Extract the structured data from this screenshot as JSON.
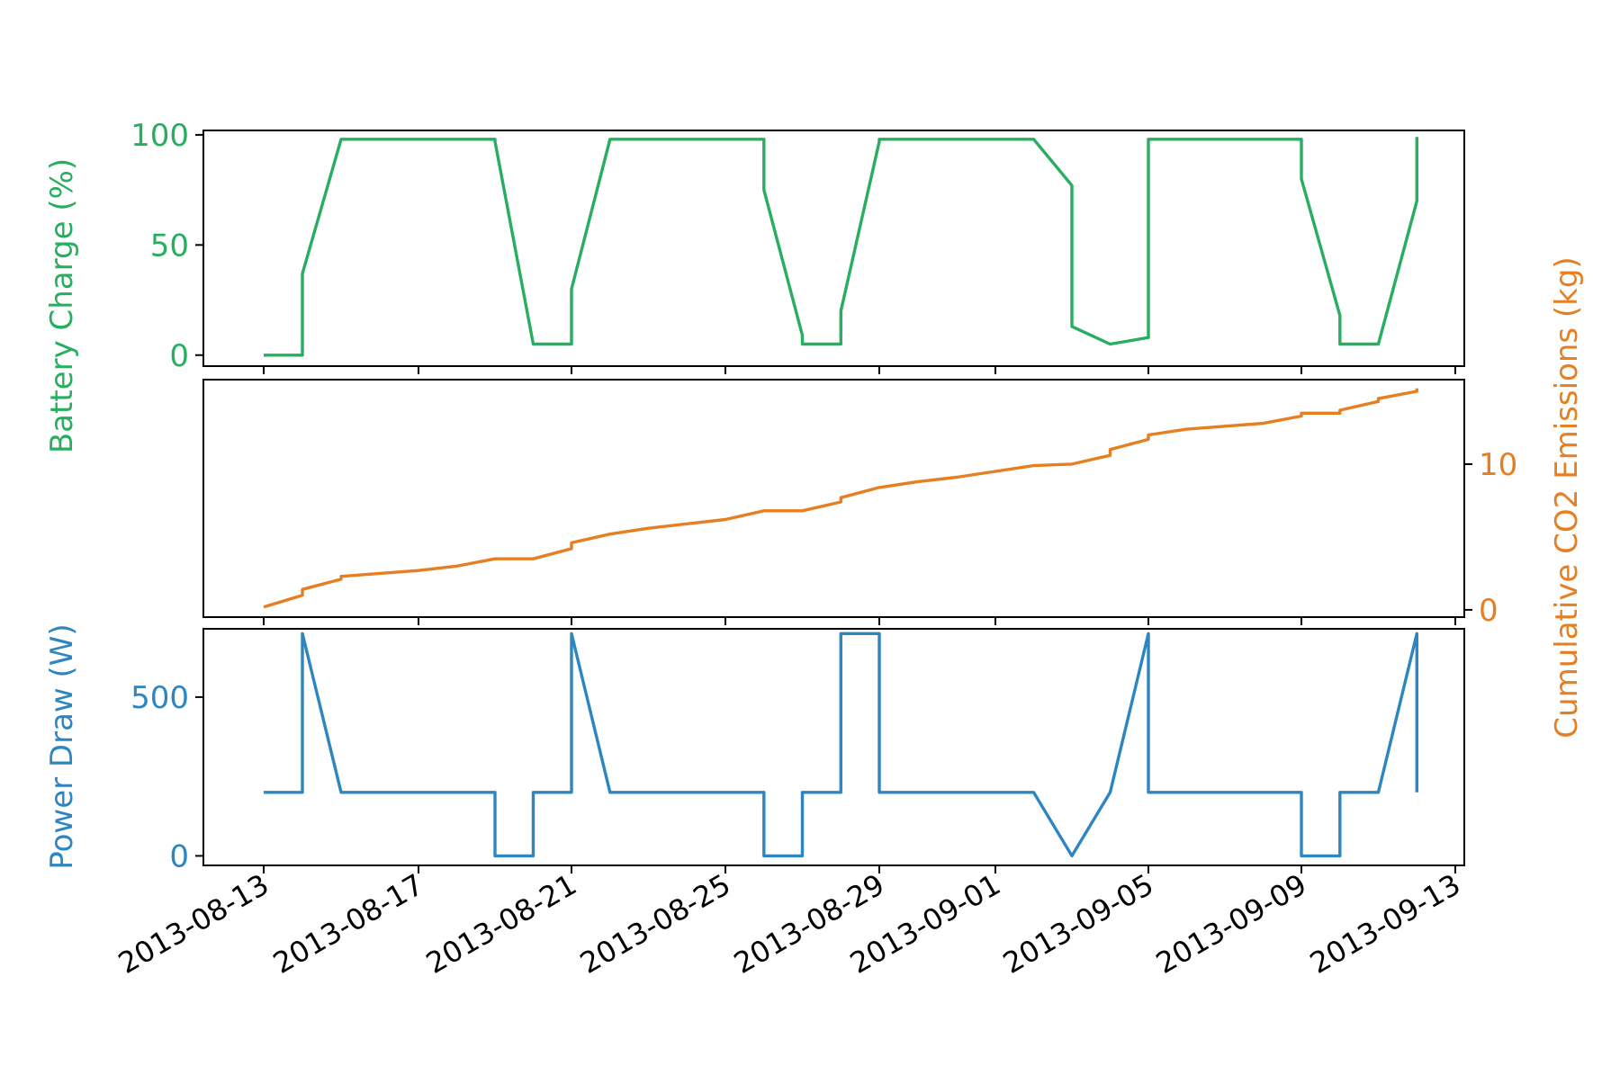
{
  "chart_data": {
    "type": "line",
    "x_axis": {
      "ticks": [
        "2013-08-13",
        "2013-08-17",
        "2013-08-21",
        "2013-08-25",
        "2013-08-29",
        "2013-09-01",
        "2013-09-05",
        "2013-09-09",
        "2013-09-13"
      ],
      "range": [
        "2012-08-11",
        "2013-09-14"
      ]
    },
    "panels": [
      {
        "series_name": "Battery Charge",
        "ylabel": "Battery Charge (%)",
        "ylabel_side": "left",
        "color": "#27ae60",
        "ylim": [
          -5,
          102
        ],
        "yticks": [
          0,
          50,
          100
        ],
        "points": [
          [
            "2013-08-13",
            0
          ],
          [
            "2013-08-14",
            0
          ],
          [
            "2013-08-14",
            37
          ],
          [
            "2013-08-15",
            98
          ],
          [
            "2013-08-19",
            98
          ],
          [
            "2013-08-19",
            97
          ],
          [
            "2013-08-20",
            5
          ],
          [
            "2013-08-21",
            5
          ],
          [
            "2013-08-21",
            30
          ],
          [
            "2013-08-22",
            98
          ],
          [
            "2013-08-26",
            98
          ],
          [
            "2013-08-26",
            75
          ],
          [
            "2013-08-27",
            9
          ],
          [
            "2013-08-27",
            5
          ],
          [
            "2013-08-28",
            5
          ],
          [
            "2013-08-28",
            20
          ],
          [
            "2013-08-29",
            97
          ],
          [
            "2013-08-29",
            98
          ],
          [
            "2013-09-02",
            98
          ],
          [
            "2013-09-03",
            77
          ],
          [
            "2013-09-03",
            13
          ],
          [
            "2013-09-04",
            5
          ],
          [
            "2013-09-04",
            5
          ],
          [
            "2013-09-05",
            8
          ],
          [
            "2013-09-05",
            85
          ],
          [
            "2013-09-05",
            98
          ],
          [
            "2013-09-09",
            98
          ],
          [
            "2013-09-09",
            80
          ],
          [
            "2013-09-10",
            18
          ],
          [
            "2013-09-10",
            5
          ],
          [
            "2013-09-11",
            5
          ],
          [
            "2013-09-12",
            70
          ],
          [
            "2013-09-12",
            99
          ]
        ]
      },
      {
        "series_name": "Cumulative CO2 Emissions",
        "ylabel": "Cumulative CO2 Emissions (kg)",
        "ylabel_side": "right",
        "color": "#e67e22",
        "ylim": [
          -0.5,
          15.8
        ],
        "yticks": [
          0,
          10
        ],
        "points": [
          [
            "2013-08-13",
            0.2
          ],
          [
            "2013-08-14",
            1.0
          ],
          [
            "2013-08-14",
            1.4
          ],
          [
            "2013-08-15",
            2.1
          ],
          [
            "2013-08-15",
            2.3
          ],
          [
            "2013-08-16",
            2.5
          ],
          [
            "2013-08-17",
            2.7
          ],
          [
            "2013-08-18",
            3.0
          ],
          [
            "2013-08-19",
            3.5
          ],
          [
            "2013-08-20",
            3.5
          ],
          [
            "2013-08-21",
            4.2
          ],
          [
            "2013-08-21",
            4.6
          ],
          [
            "2013-08-22",
            5.2
          ],
          [
            "2013-08-23",
            5.6
          ],
          [
            "2013-08-24",
            5.9
          ],
          [
            "2013-08-25",
            6.2
          ],
          [
            "2013-08-26",
            6.8
          ],
          [
            "2013-08-26",
            6.8
          ],
          [
            "2013-08-27",
            6.8
          ],
          [
            "2013-08-28",
            7.4
          ],
          [
            "2013-08-28",
            7.7
          ],
          [
            "2013-08-29",
            8.4
          ],
          [
            "2013-08-30",
            8.8
          ],
          [
            "2013-08-31",
            9.1
          ],
          [
            "2013-09-01",
            9.5
          ],
          [
            "2013-09-02",
            9.9
          ],
          [
            "2013-09-03",
            10.0
          ],
          [
            "2013-09-03",
            10.0
          ],
          [
            "2013-09-04",
            10.6
          ],
          [
            "2013-09-04",
            11.0
          ],
          [
            "2013-09-05",
            11.7
          ],
          [
            "2013-09-05",
            12.0
          ],
          [
            "2013-09-06",
            12.4
          ],
          [
            "2013-09-07",
            12.6
          ],
          [
            "2013-09-08",
            12.8
          ],
          [
            "2013-09-09",
            13.3
          ],
          [
            "2013-09-09",
            13.5
          ],
          [
            "2013-09-10",
            13.5
          ],
          [
            "2013-09-10",
            13.7
          ],
          [
            "2013-09-11",
            14.3
          ],
          [
            "2013-09-11",
            14.5
          ],
          [
            "2013-09-12",
            15.0
          ],
          [
            "2013-09-12",
            15.2
          ]
        ]
      },
      {
        "series_name": "Power Draw",
        "ylabel": "Power Draw (W)",
        "ylabel_side": "left",
        "color": "#2e86c1",
        "ylim": [
          -30,
          715
        ],
        "yticks": [
          0,
          500
        ],
        "points": [
          [
            "2013-08-13",
            200
          ],
          [
            "2013-08-14",
            200
          ],
          [
            "2013-08-14",
            700
          ],
          [
            "2013-08-15",
            200
          ],
          [
            "2013-08-19",
            200
          ],
          [
            "2013-08-19",
            0
          ],
          [
            "2013-08-20",
            0
          ],
          [
            "2013-08-20",
            200
          ],
          [
            "2013-08-21",
            200
          ],
          [
            "2013-08-21",
            700
          ],
          [
            "2013-08-22",
            200
          ],
          [
            "2013-08-26",
            200
          ],
          [
            "2013-08-26",
            0
          ],
          [
            "2013-08-27",
            0
          ],
          [
            "2013-08-27",
            200
          ],
          [
            "2013-08-28",
            200
          ],
          [
            "2013-08-28",
            700
          ],
          [
            "2013-08-29",
            700
          ],
          [
            "2013-08-29",
            200
          ],
          [
            "2013-09-02",
            200
          ],
          [
            "2013-09-03",
            0
          ],
          [
            "2013-09-03",
            0
          ],
          [
            "2013-09-04",
            200
          ],
          [
            "2013-09-04",
            200
          ],
          [
            "2013-09-05",
            700
          ],
          [
            "2013-09-05",
            700
          ],
          [
            "2013-09-05",
            200
          ],
          [
            "2013-09-09",
            200
          ],
          [
            "2013-09-09",
            0
          ],
          [
            "2013-09-10",
            0
          ],
          [
            "2013-09-10",
            200
          ],
          [
            "2013-09-11",
            200
          ],
          [
            "2013-09-12",
            700
          ],
          [
            "2013-09-12",
            200
          ]
        ]
      }
    ],
    "grid": false,
    "legend": "none"
  }
}
